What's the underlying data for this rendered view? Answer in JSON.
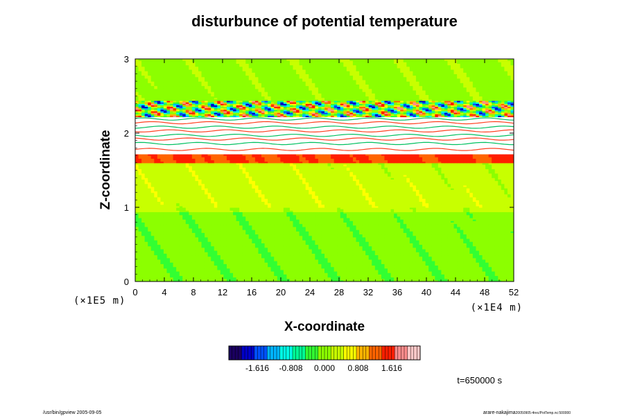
{
  "chart_data": {
    "type": "heatmap",
    "title": "disturbunce of potential temperature",
    "xlabel": "X-coordinate",
    "ylabel": "Z-coordinate",
    "x_unit": "(×1E4 m)",
    "y_unit": "(×1E5 m)",
    "xlim": [
      0,
      52
    ],
    "ylim": [
      0,
      3
    ],
    "x_ticks": [
      "0",
      "4",
      "8",
      "12",
      "16",
      "20",
      "24",
      "28",
      "32",
      "36",
      "40",
      "44",
      "48",
      "52"
    ],
    "y_ticks": [
      "0",
      "1",
      "2",
      "3"
    ],
    "colorbar": {
      "ticks": [
        "-1.616",
        "-0.808",
        "0.000",
        "0.808",
        "1.616"
      ],
      "min": -2.3,
      "max": 2.3,
      "colors": [
        "#1a0060",
        "#0000c8",
        "#0050ff",
        "#00b4ff",
        "#00ffe6",
        "#00ff96",
        "#32ff32",
        "#8cff00",
        "#c8ff00",
        "#ffff00",
        "#ffb400",
        "#ff6400",
        "#ff1e00",
        "#ff8c8c",
        "#ffc8c8"
      ]
    },
    "regions": [
      {
        "z": [
          0,
          0.95
        ],
        "value": -0.05
      },
      {
        "z": [
          0.95,
          1.0
        ],
        "value": 0.25
      },
      {
        "z": [
          1.0,
          1.6
        ],
        "value": 0.3
      },
      {
        "z": [
          1.6,
          1.73
        ],
        "value": 1.4
      },
      {
        "z": [
          1.73,
          2.22
        ],
        "value": "undefined"
      },
      {
        "z": [
          2.22,
          2.45
        ],
        "value": "oscillating"
      },
      {
        "z": [
          2.45,
          3.0
        ],
        "value": 0.05
      }
    ]
  },
  "time_label": "t=650000 s",
  "footer_left": "/usr/bin/gpview 2005-09-05",
  "footer_right": "arare-nakajima",
  "footer_right_small": "20050905-4rec/PotTemp.nc:500000"
}
